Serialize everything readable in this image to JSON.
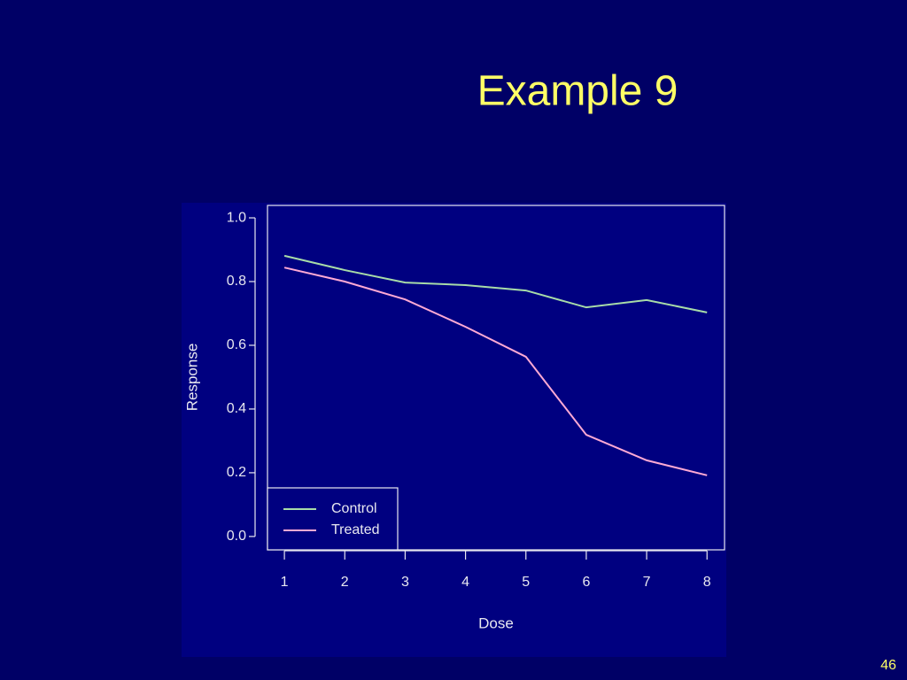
{
  "chart_data": {
    "type": "line",
    "title": "Example 9",
    "page_number": "46",
    "x_label": "Dose",
    "y_label": "Response",
    "x": [
      1,
      2,
      3,
      4,
      5,
      6,
      7,
      8
    ],
    "series": [
      {
        "name": "Control",
        "color": "#a8dca8",
        "values": [
          0.881,
          0.836,
          0.797,
          0.789,
          0.772,
          0.719,
          0.742,
          0.703
        ]
      },
      {
        "name": "Treated",
        "color": "#ffaad4",
        "values": [
          0.844,
          0.8,
          0.744,
          0.658,
          0.564,
          0.319,
          0.239,
          0.192
        ]
      }
    ],
    "xlim": [
      0.72,
      8.29
    ],
    "ylim": [
      -0.042,
      1.039
    ],
    "xticks": [
      1,
      2,
      3,
      4,
      5,
      6,
      7,
      8
    ],
    "yticks": [
      {
        "value": 0,
        "label": "0.0"
      },
      0.2,
      0.4,
      0.6,
      0.8,
      {
        "value": 1,
        "label": "1.0"
      }
    ],
    "legend": "bottom left"
  }
}
